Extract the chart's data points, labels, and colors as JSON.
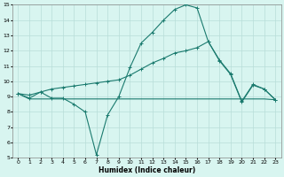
{
  "xlabel": "Humidex (Indice chaleur)",
  "x": [
    0,
    1,
    2,
    3,
    4,
    5,
    6,
    7,
    8,
    9,
    10,
    11,
    12,
    13,
    14,
    15,
    16,
    17,
    18,
    19,
    20,
    21,
    22,
    23
  ],
  "line1": [
    9.2,
    8.9,
    9.3,
    8.9,
    8.9,
    8.5,
    8.0,
    5.2,
    7.8,
    9.0,
    10.9,
    12.5,
    13.2,
    14.0,
    14.7,
    15.0,
    14.8,
    12.6,
    11.4,
    10.5,
    8.7,
    9.8,
    9.5,
    8.8
  ],
  "line2": [
    9.2,
    8.85,
    8.85,
    8.85,
    8.85,
    8.85,
    8.85,
    8.85,
    8.85,
    8.85,
    8.85,
    8.85,
    8.85,
    8.85,
    8.85,
    8.85,
    8.85,
    8.85,
    8.85,
    8.85,
    8.85,
    8.85,
    8.85,
    8.8
  ],
  "line3": [
    9.2,
    9.1,
    9.3,
    9.5,
    9.6,
    9.7,
    9.8,
    9.9,
    10.0,
    10.1,
    10.4,
    10.8,
    11.2,
    11.5,
    11.85,
    12.0,
    12.2,
    12.6,
    11.35,
    10.45,
    8.65,
    9.75,
    9.5,
    8.8
  ],
  "color": "#1a7a6e",
  "bg_color": "#d8f5f0",
  "grid_color": "#b8ddd8",
  "ylim": [
    5,
    15
  ],
  "xlim": [
    -0.5,
    23.5
  ],
  "yticks": [
    5,
    6,
    7,
    8,
    9,
    10,
    11,
    12,
    13,
    14,
    15
  ],
  "xticks": [
    0,
    1,
    2,
    3,
    4,
    5,
    6,
    7,
    8,
    9,
    10,
    11,
    12,
    13,
    14,
    15,
    16,
    17,
    18,
    19,
    20,
    21,
    22,
    23
  ]
}
